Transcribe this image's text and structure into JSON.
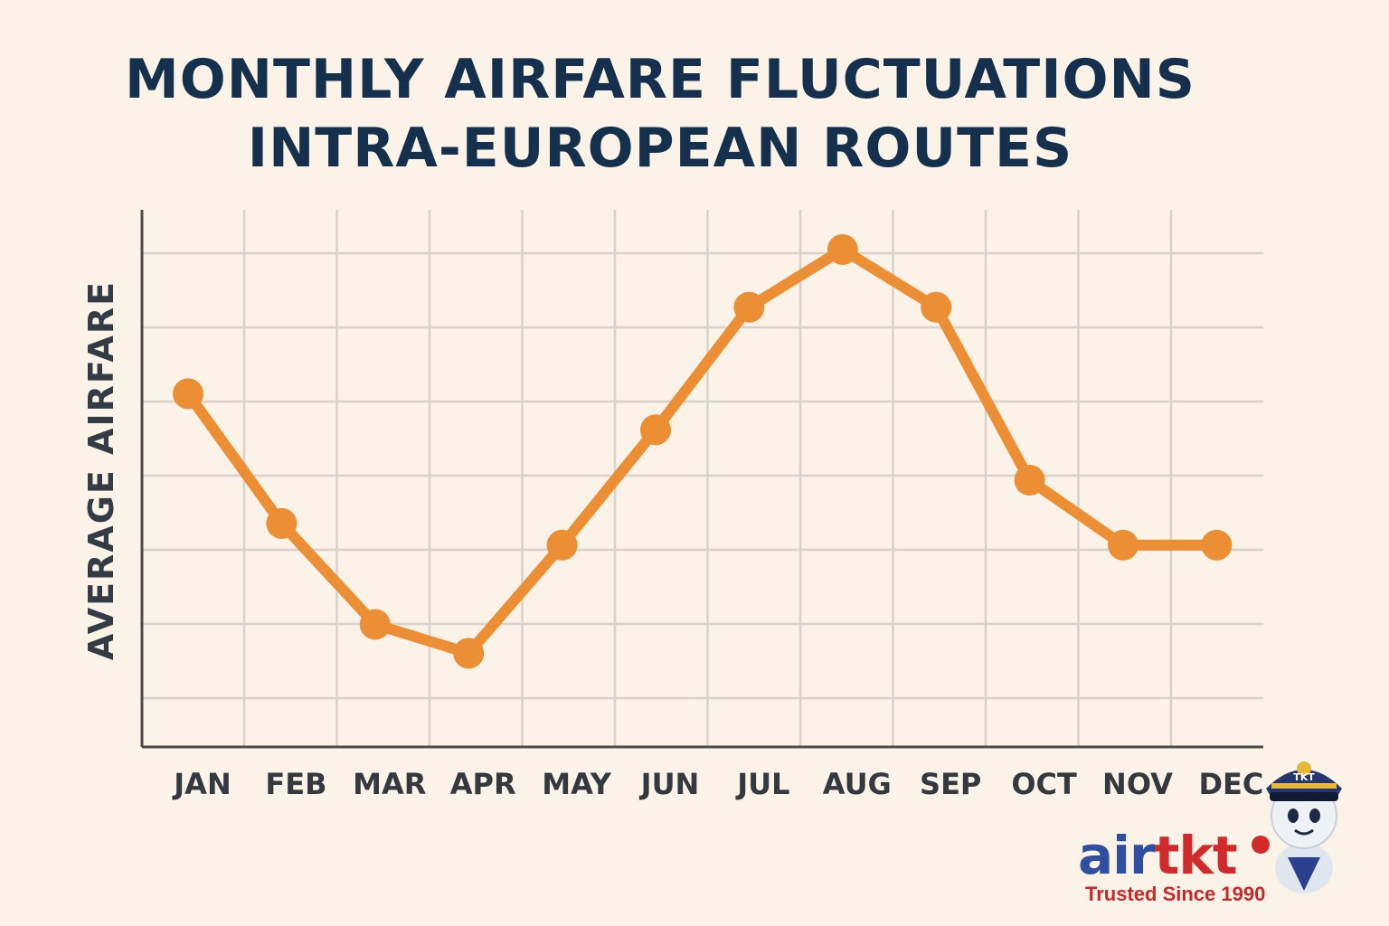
{
  "title_lines": [
    "MONTHLY AIRFARE FLUCTUATIONS",
    "INTRA-EUROPEAN ROUTES"
  ],
  "chart_data": {
    "type": "line",
    "title": "MONTHLY AIRFARE FLUCTUATIONS INTRA-EUROPEAN ROUTES",
    "xlabel": "",
    "ylabel": "AVERAGE AIRFARE",
    "categories": [
      "JAN",
      "FEB",
      "MAR",
      "APR",
      "MAY",
      "JUN",
      "JUL",
      "AUG",
      "SEP",
      "OCT",
      "NOV",
      "DEC"
    ],
    "values": [
      4.9,
      3.1,
      1.7,
      1.3,
      2.8,
      4.4,
      6.1,
      6.9,
      6.1,
      3.7,
      2.8,
      2.8
    ],
    "ylim": [
      0,
      7.1
    ],
    "grid": true,
    "yticks_shown": false,
    "line_color": "#ec8e33",
    "grid_color": "#d8d2cb",
    "axis_color": "#4a4a4a"
  },
  "logo": {
    "brand_part1": "air",
    "brand_part2": "tkt",
    "tagline": "Trusted Since 1990",
    "cap_badge": "TKT",
    "colors": {
      "blue": "#2f4fa3",
      "red": "#d12a2a"
    }
  }
}
